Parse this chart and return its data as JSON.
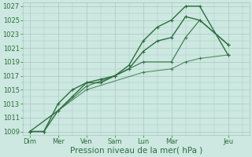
{
  "background_color": "#cce8e0",
  "grid_color": "#a8c8c0",
  "line_color": "#2d6e3e",
  "x_labels": [
    "Dim",
    "Mer",
    "Ven",
    "Sam",
    "Lun",
    "Mar",
    "Jeu"
  ],
  "x_tick_pos": [
    0,
    2,
    4,
    6,
    8,
    10,
    14
  ],
  "ylabel": "Pression niveau de la mer( hPa )",
  "ylim": [
    1008.5,
    1027.5
  ],
  "yticks": [
    1009,
    1011,
    1013,
    1015,
    1017,
    1019,
    1021,
    1023,
    1025,
    1027
  ],
  "xlim": [
    -0.5,
    15.5
  ],
  "series": [
    {
      "x": [
        0,
        1,
        2,
        3,
        4,
        5,
        6,
        7,
        8,
        9,
        10,
        11,
        12,
        14
      ],
      "y": [
        1009,
        1009,
        1012,
        1014,
        1016,
        1016.5,
        1017,
        1018.5,
        1022,
        1024,
        1025,
        1027,
        1027,
        1020
      ],
      "lw": 1.0,
      "ms": 2.8,
      "alpha": 1.0
    },
    {
      "x": [
        0,
        1,
        2,
        3,
        4,
        5,
        6,
        7,
        8,
        9,
        10,
        11,
        12,
        14
      ],
      "y": [
        1009,
        1009,
        1013,
        1015,
        1016,
        1016,
        1017,
        1018,
        1020.5,
        1022,
        1022.5,
        1025.5,
        1025,
        1021.5
      ],
      "lw": 1.0,
      "ms": 2.8,
      "alpha": 1.0
    },
    {
      "x": [
        0,
        2,
        4,
        6,
        8,
        10,
        11,
        12,
        14
      ],
      "y": [
        1009,
        1012,
        1015.5,
        1017,
        1019,
        1019,
        1022.5,
        1025,
        1021.5
      ],
      "lw": 0.9,
      "ms": 2.5,
      "alpha": 0.85
    },
    {
      "x": [
        0,
        4,
        8,
        10,
        11,
        12,
        14
      ],
      "y": [
        1009,
        1015,
        1017.5,
        1018,
        1019,
        1019.5,
        1020
      ],
      "lw": 0.8,
      "ms": 2.2,
      "alpha": 0.75
    }
  ],
  "tick_fontsize": 6.0,
  "label_fontsize": 7.5
}
